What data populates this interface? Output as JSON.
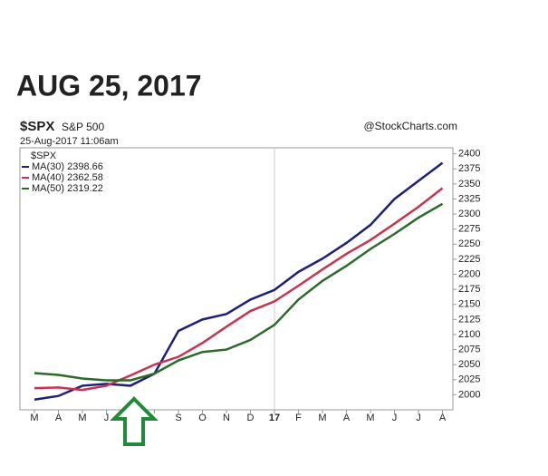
{
  "chart_data": {
    "type": "line",
    "title": "AUG 25, 2017",
    "symbol": "$SPX",
    "symbol_name": "S&P 500",
    "source": "@StockCharts.com",
    "timestamp": "25-Aug-2017 11:06am",
    "legend_title": "$SPX",
    "categories": [
      "M",
      "A",
      "M",
      "J",
      null,
      null,
      "S",
      "O",
      "N",
      "D",
      "17",
      "F",
      "M",
      "A",
      "M",
      "J",
      "J",
      "A"
    ],
    "series": [
      {
        "name": "MA(30) 2398.66",
        "color": "#1f1f7a",
        "values": [
          1992,
          1998,
          2015,
          2018,
          2015,
          2035,
          2106,
          2125,
          2134,
          2158,
          2174,
          2204,
          2226,
          2252,
          2282,
          2325,
          2355,
          2385
        ]
      },
      {
        "name": "MA(40) 2362.58",
        "color": "#c8334f",
        "values": [
          2011,
          2012,
          2008,
          2015,
          2032,
          2050,
          2063,
          2086,
          2113,
          2139,
          2155,
          2181,
          2208,
          2234,
          2257,
          2284,
          2312,
          2343
        ]
      },
      {
        "name": "MA(50) 2319.22",
        "color": "#2a6b2a",
        "values": [
          2036,
          2033,
          2027,
          2024,
          2024,
          2035,
          2057,
          2071,
          2075,
          2091,
          2116,
          2158,
          2189,
          2214,
          2242,
          2267,
          2294,
          2317
        ]
      }
    ],
    "ylim": [
      1975,
      2410
    ],
    "yticks": [
      2000,
      2025,
      2050,
      2075,
      2100,
      2125,
      2150,
      2175,
      2200,
      2225,
      2250,
      2275,
      2300,
      2325,
      2350,
      2375,
      2400
    ],
    "grid": false
  }
}
